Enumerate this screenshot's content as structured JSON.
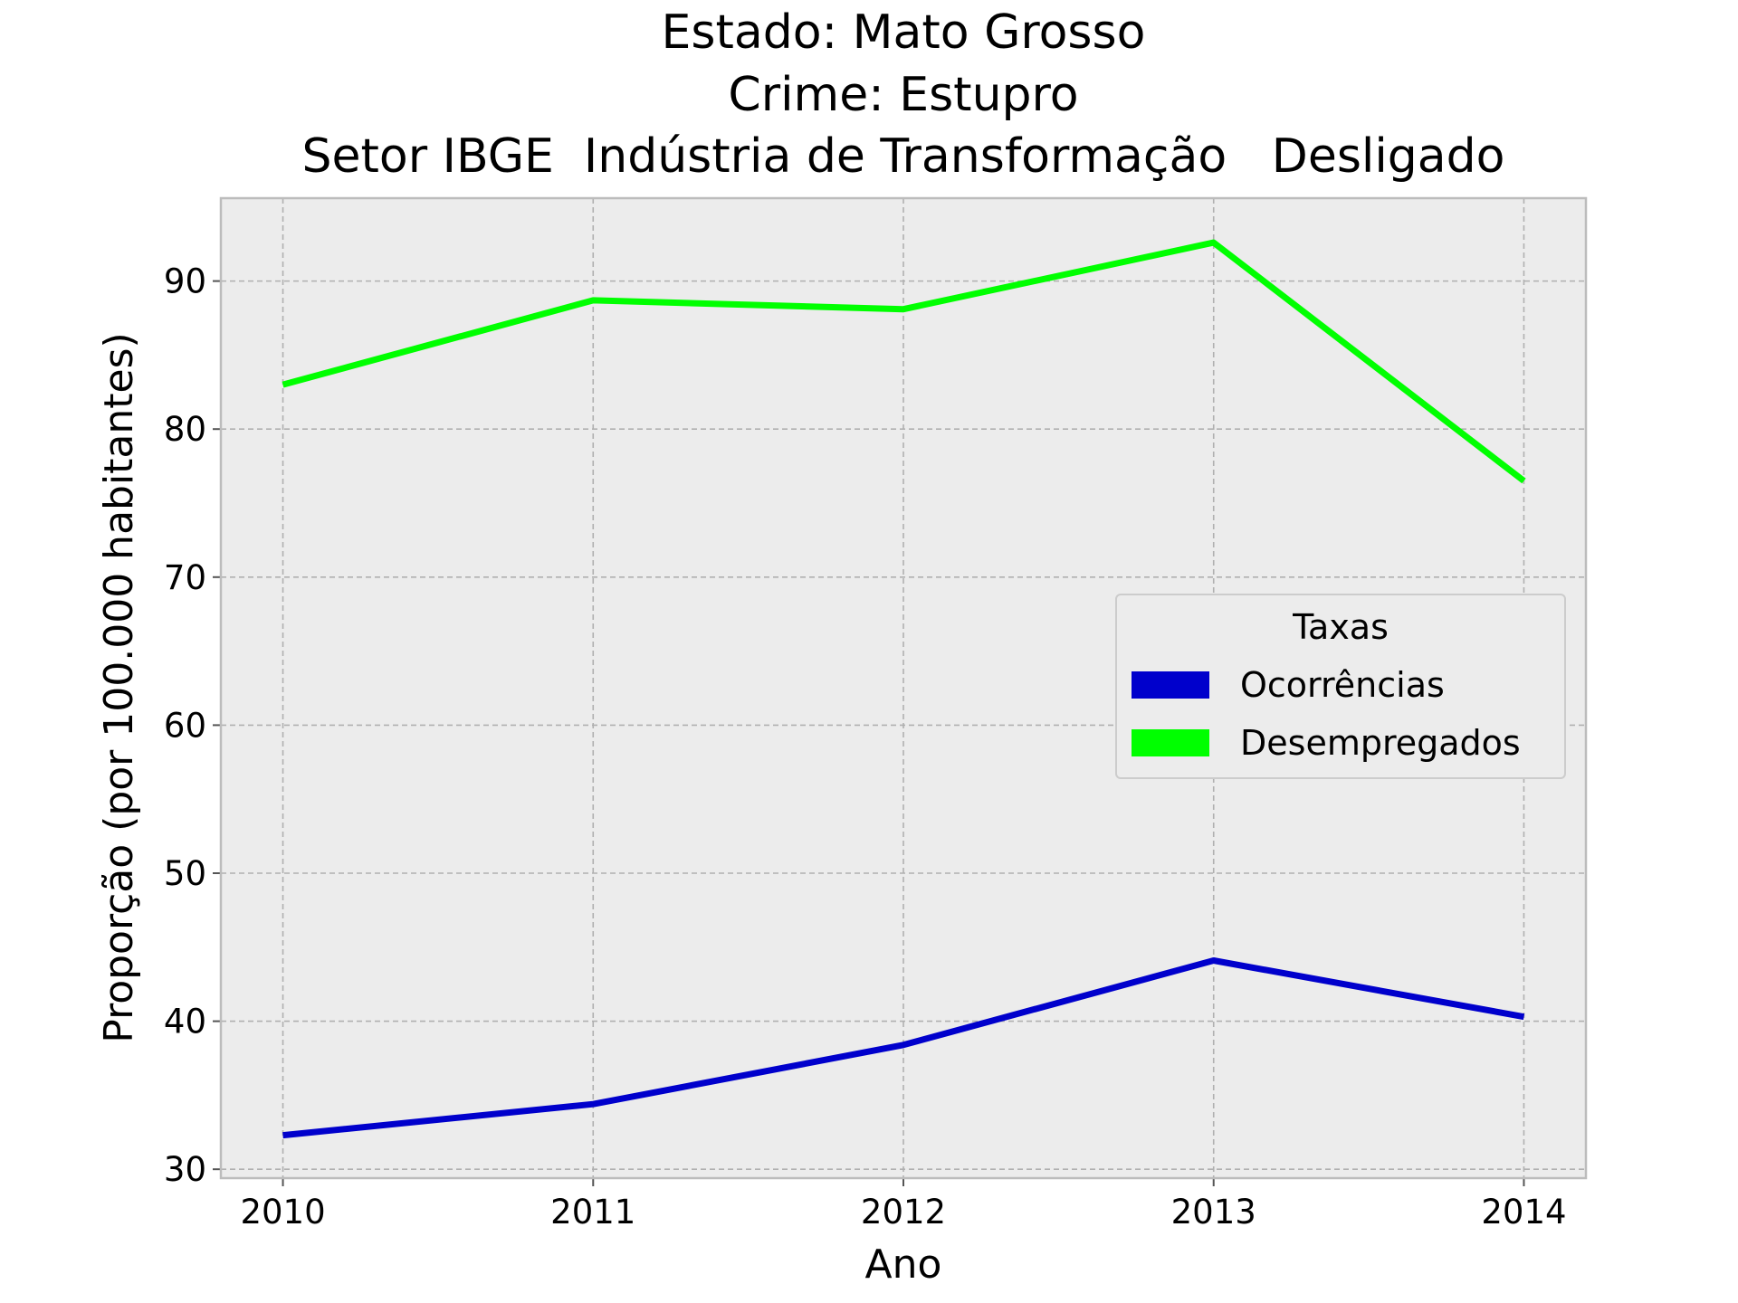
{
  "chart_data": {
    "type": "line",
    "title_lines": [
      "Estado: Mato Grosso",
      "Crime: Estupro",
      "Setor IBGE  Indústria de Transformação   Desligado"
    ],
    "xlabel": "Ano",
    "ylabel": "Proporção (por 100.000 habitantes)",
    "x": [
      2010,
      2011,
      2012,
      2013,
      2014
    ],
    "x_tick_labels": [
      "2010",
      "2011",
      "2012",
      "2013",
      "2014"
    ],
    "y_ticks": [
      30,
      40,
      50,
      60,
      70,
      80,
      90
    ],
    "y_tick_labels": [
      "30",
      "40",
      "50",
      "60",
      "70",
      "80",
      "90"
    ],
    "xlim": [
      2009.8,
      2014.2
    ],
    "ylim": [
      29.4,
      95.6
    ],
    "grid": true,
    "legend": {
      "title": "Taxas",
      "position": "center-right"
    },
    "series": [
      {
        "name": "Ocorrências",
        "color": "#0000cc",
        "values": [
          32.3,
          34.4,
          38.4,
          44.1,
          40.3
        ]
      },
      {
        "name": "Desempregados",
        "color": "#00ff00",
        "values": [
          83.0,
          88.7,
          88.1,
          92.6,
          76.5
        ]
      }
    ],
    "colors": {
      "plot_background": "#ececec",
      "grid": "#b0b0b0",
      "frame": "#bcbcbc"
    }
  }
}
